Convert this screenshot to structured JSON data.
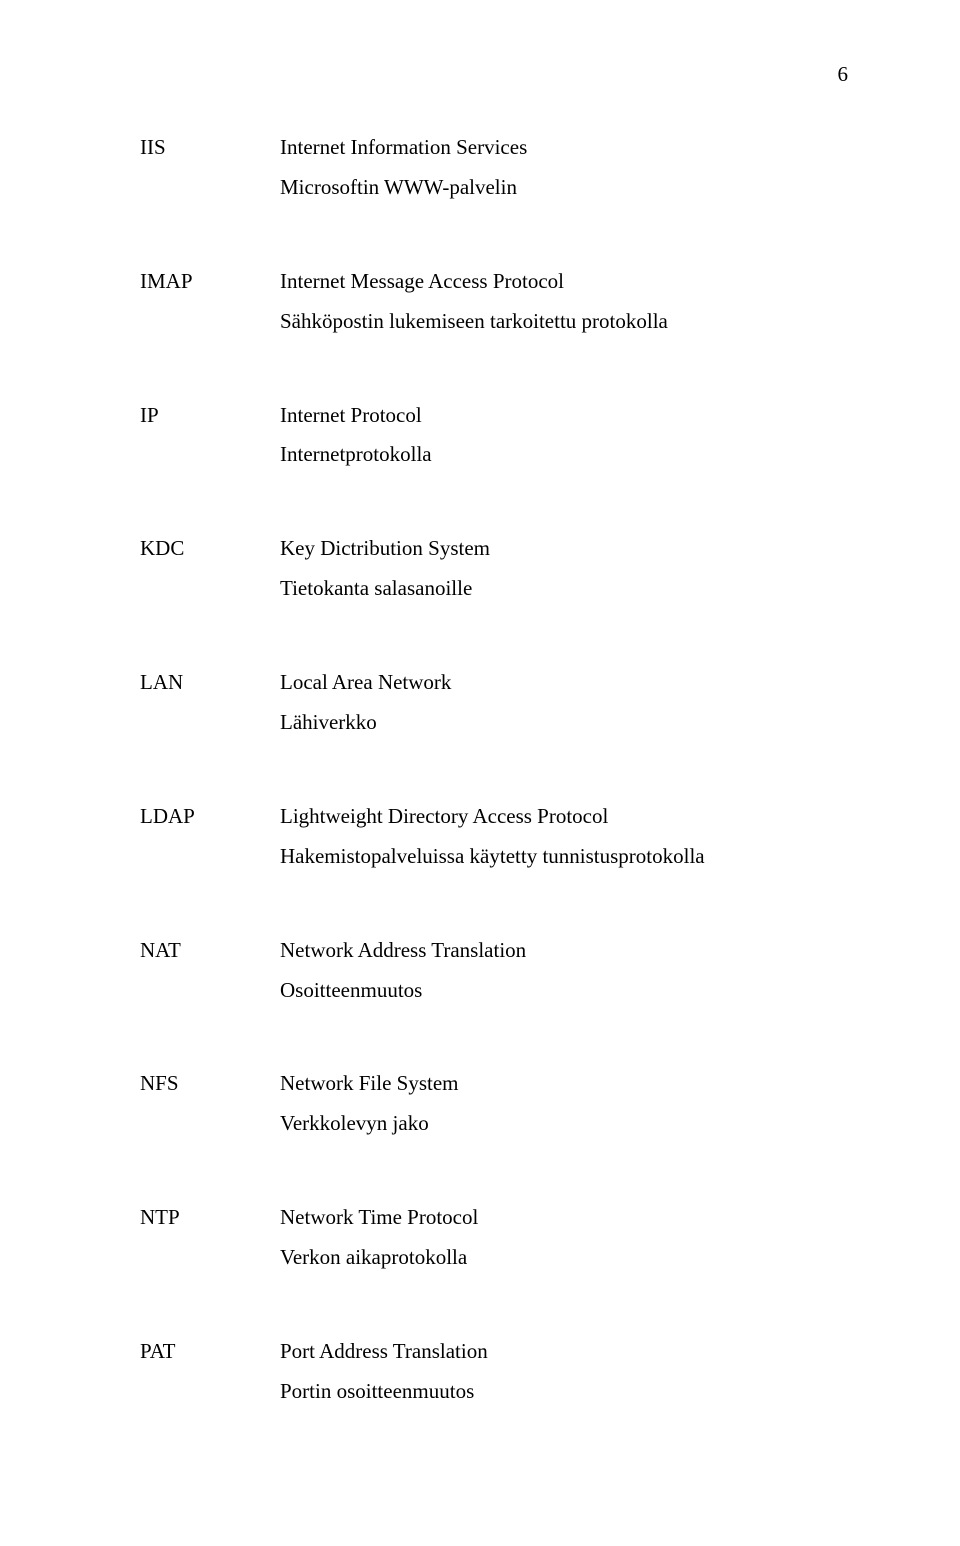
{
  "page_number": "6",
  "entries": [
    {
      "abbr": "IIS",
      "line1": "Internet Information Services",
      "line2": "Microsoftin WWW-palvelin"
    },
    {
      "abbr": "IMAP",
      "line1": "Internet Message Access Protocol",
      "line2": "Sähköpostin lukemiseen tarkoitettu protokolla"
    },
    {
      "abbr": "IP",
      "line1": "Internet Protocol",
      "line2": "Internetprotokolla"
    },
    {
      "abbr": "KDC",
      "line1": "Key Dictribution System",
      "line2": "Tietokanta salasanoille"
    },
    {
      "abbr": "LAN",
      "line1": "Local Area Network",
      "line2": "Lähiverkko"
    },
    {
      "abbr": "LDAP",
      "line1": "Lightweight Directory Access Protocol",
      "line2": "Hakemistopalveluissa käytetty tunnistusprotokolla"
    },
    {
      "abbr": "NAT",
      "line1": "Network Address Translation",
      "line2": "Osoitteenmuutos"
    },
    {
      "abbr": "NFS",
      "line1": "Network File System",
      "line2": "Verkkolevyn jako"
    },
    {
      "abbr": "NTP",
      "line1": "Network Time Protocol",
      "line2": "Verkon aikaprotokolla"
    },
    {
      "abbr": "PAT",
      "line1": "Port Address Translation",
      "line2": "Portin osoitteenmuutos"
    }
  ]
}
